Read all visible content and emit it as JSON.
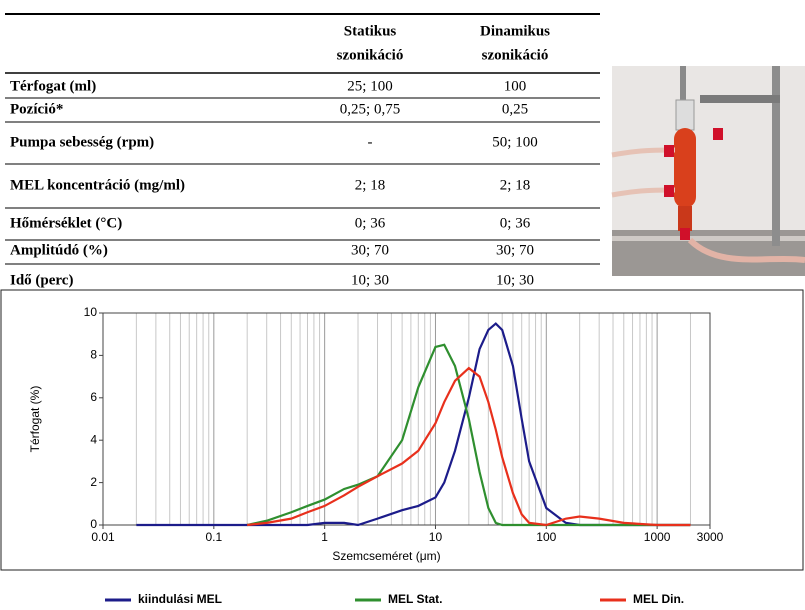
{
  "table": {
    "header": [
      [
        "Statikus",
        "szonikáció"
      ],
      [
        "Dinamikus",
        "szonikáció"
      ]
    ],
    "rows": [
      [
        "Térfogat (ml)",
        "25; 100",
        "100"
      ],
      [
        "Pozíció*",
        "0,25; 0,75",
        "0,25"
      ],
      [
        "Pumpa sebesség (rpm)",
        "-",
        "50; 100"
      ],
      [
        "MEL koncentráció (mg/ml)",
        "2; 18",
        "2; 18"
      ],
      [
        "Hőmérséklet (°C)",
        "0; 36",
        "0; 36"
      ],
      [
        "Amplitúdó (%)",
        "30; 70",
        "30; 70"
      ],
      [
        "Idő (perc)",
        "10; 30",
        "10; 30"
      ]
    ]
  },
  "chart_data": {
    "type": "line",
    "xlabel": "Szemcseméret (μm)",
    "ylabel": "Térfogat (%)",
    "xscale": "log",
    "xgrid": true,
    "xlim": [
      0.01,
      3000
    ],
    "xticks": [
      0.01,
      0.1,
      1,
      10,
      100,
      1000,
      3000
    ],
    "ylim": [
      0,
      10
    ],
    "yticks": [
      0,
      2,
      4,
      6,
      8,
      10
    ],
    "x": [
      0.02,
      0.2,
      0.3,
      0.5,
      0.7,
      1,
      1.5,
      2,
      3,
      5,
      7,
      10,
      12,
      15,
      20,
      25,
      30,
      35,
      40,
      50,
      60,
      70,
      100,
      150,
      200,
      300,
      500,
      1000,
      2000
    ],
    "series": [
      {
        "name": "kiindulási MEL",
        "color": "#1c1c8a",
        "values": [
          0,
          0,
          0,
          0,
          0,
          0.1,
          0.1,
          0,
          0.3,
          0.7,
          0.9,
          1.3,
          2,
          3.5,
          6,
          8.3,
          9.2,
          9.5,
          9.2,
          7.5,
          5,
          3,
          0.8,
          0.1,
          0,
          0,
          0,
          0,
          0
        ]
      },
      {
        "name": "MEL Stat.",
        "color": "#2f8f2f",
        "values": [
          null,
          0,
          0.2,
          0.6,
          0.9,
          1.2,
          1.7,
          1.9,
          2.3,
          4,
          6.5,
          8.4,
          8.5,
          7.5,
          5,
          2.5,
          0.8,
          0.1,
          0,
          0,
          0,
          0,
          0,
          0,
          0,
          0,
          0,
          0,
          0
        ]
      },
      {
        "name": "MEL Din.",
        "color": "#e8301c",
        "values": [
          null,
          0,
          0.1,
          0.3,
          0.6,
          0.9,
          1.4,
          1.8,
          2.3,
          2.9,
          3.5,
          4.8,
          5.8,
          6.8,
          7.4,
          7,
          5.8,
          4.5,
          3.2,
          1.5,
          0.5,
          0.1,
          0,
          0.3,
          0.4,
          0.3,
          0.1,
          0,
          0
        ]
      }
    ]
  }
}
